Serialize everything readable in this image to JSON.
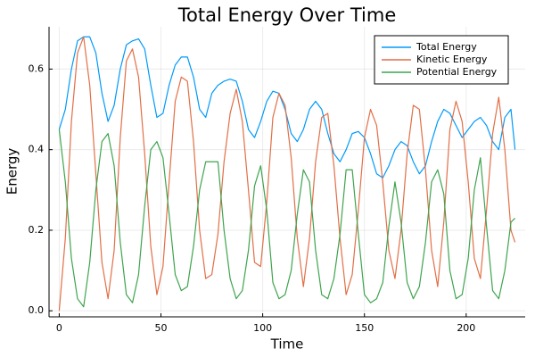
{
  "chart_data": {
    "type": "line",
    "title": "Total Energy Over Time",
    "xlabel": "Time",
    "ylabel": "Energy",
    "xlim": [
      -5,
      229
    ],
    "ylim": [
      -0.015,
      0.705
    ],
    "x_ticks": [
      0,
      50,
      100,
      150,
      200
    ],
    "y_ticks": [
      0.0,
      0.2,
      0.4,
      0.6
    ],
    "x_tick_labels": [
      "0",
      "50",
      "100",
      "150",
      "200"
    ],
    "y_tick_labels": [
      "0.0",
      "0.2",
      "0.4",
      "0.6"
    ],
    "grid": true,
    "legend_position": "top-right",
    "x": [
      0,
      3,
      6,
      9,
      12,
      15,
      18,
      21,
      24,
      27,
      30,
      33,
      36,
      39,
      42,
      45,
      48,
      51,
      54,
      57,
      60,
      63,
      66,
      69,
      72,
      75,
      78,
      81,
      84,
      87,
      90,
      93,
      96,
      99,
      102,
      105,
      108,
      111,
      114,
      117,
      120,
      123,
      126,
      129,
      132,
      135,
      138,
      141,
      144,
      147,
      150,
      153,
      156,
      159,
      162,
      165,
      168,
      171,
      174,
      177,
      180,
      183,
      186,
      189,
      192,
      195,
      198,
      201,
      204,
      207,
      210,
      213,
      216,
      219,
      222,
      224
    ],
    "series": [
      {
        "name": "Total Energy",
        "color": "#009AFA",
        "values": [
          0.45,
          0.5,
          0.6,
          0.67,
          0.68,
          0.68,
          0.64,
          0.54,
          0.47,
          0.51,
          0.6,
          0.66,
          0.67,
          0.675,
          0.65,
          0.56,
          0.48,
          0.49,
          0.56,
          0.61,
          0.63,
          0.63,
          0.58,
          0.5,
          0.48,
          0.54,
          0.56,
          0.57,
          0.575,
          0.57,
          0.52,
          0.45,
          0.43,
          0.47,
          0.52,
          0.545,
          0.54,
          0.5,
          0.44,
          0.42,
          0.45,
          0.5,
          0.52,
          0.5,
          0.44,
          0.39,
          0.37,
          0.4,
          0.44,
          0.445,
          0.43,
          0.39,
          0.34,
          0.33,
          0.36,
          0.4,
          0.42,
          0.41,
          0.37,
          0.34,
          0.36,
          0.42,
          0.47,
          0.5,
          0.49,
          0.46,
          0.43,
          0.45,
          0.47,
          0.48,
          0.46,
          0.42,
          0.4,
          0.48,
          0.5,
          0.4
        ]
      },
      {
        "name": "Kinetic Energy",
        "color": "#E26F46",
        "values": [
          0.0,
          0.18,
          0.47,
          0.64,
          0.68,
          0.56,
          0.34,
          0.12,
          0.03,
          0.15,
          0.43,
          0.62,
          0.65,
          0.58,
          0.39,
          0.16,
          0.04,
          0.11,
          0.32,
          0.52,
          0.58,
          0.57,
          0.42,
          0.2,
          0.08,
          0.09,
          0.19,
          0.37,
          0.49,
          0.55,
          0.47,
          0.3,
          0.12,
          0.11,
          0.27,
          0.48,
          0.54,
          0.51,
          0.38,
          0.18,
          0.06,
          0.18,
          0.37,
          0.48,
          0.49,
          0.36,
          0.18,
          0.04,
          0.09,
          0.25,
          0.43,
          0.5,
          0.46,
          0.32,
          0.15,
          0.08,
          0.2,
          0.39,
          0.51,
          0.5,
          0.35,
          0.15,
          0.06,
          0.22,
          0.45,
          0.52,
          0.47,
          0.32,
          0.13,
          0.08,
          0.25,
          0.44,
          0.53,
          0.4,
          0.2,
          0.17
        ]
      },
      {
        "name": "Potential Energy",
        "color": "#3EA44E",
        "values": [
          0.45,
          0.32,
          0.13,
          0.03,
          0.01,
          0.12,
          0.3,
          0.42,
          0.44,
          0.36,
          0.17,
          0.04,
          0.02,
          0.09,
          0.26,
          0.4,
          0.42,
          0.38,
          0.24,
          0.09,
          0.05,
          0.06,
          0.16,
          0.3,
          0.37,
          0.37,
          0.37,
          0.2,
          0.08,
          0.03,
          0.05,
          0.15,
          0.31,
          0.36,
          0.25,
          0.07,
          0.03,
          0.04,
          0.1,
          0.24,
          0.35,
          0.32,
          0.15,
          0.04,
          0.03,
          0.08,
          0.19,
          0.35,
          0.35,
          0.19,
          0.04,
          0.02,
          0.03,
          0.07,
          0.21,
          0.32,
          0.22,
          0.07,
          0.03,
          0.06,
          0.17,
          0.32,
          0.35,
          0.29,
          0.1,
          0.03,
          0.04,
          0.13,
          0.3,
          0.38,
          0.21,
          0.05,
          0.03,
          0.1,
          0.22,
          0.23
        ]
      }
    ]
  }
}
